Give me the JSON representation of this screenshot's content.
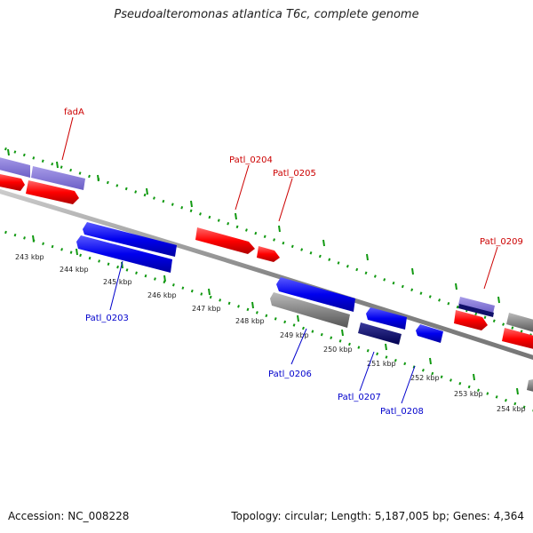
{
  "title": "Pseudoalteromonas atlantica T6c, complete genome",
  "accession": "Accession: NC_008228",
  "summary": "Topology: circular; Length: 5,187,005 bp; Genes: 4,364",
  "colors": {
    "forward_gene": "#ff0000",
    "reverse_gene": "#0000ee",
    "forward_label": "#cc0000",
    "reverse_label": "#0000cc",
    "backbone": "#888888",
    "ticks": "#119911"
  },
  "kbp_ticks": [
    {
      "label": "243 kbp"
    },
    {
      "label": "244 kbp"
    },
    {
      "label": "245 kbp"
    },
    {
      "label": "246 kbp"
    },
    {
      "label": "247 kbp"
    },
    {
      "label": "248 kbp"
    },
    {
      "label": "249 kbp"
    },
    {
      "label": "250 kbp"
    },
    {
      "label": "251 kbp"
    },
    {
      "label": "252 kbp"
    },
    {
      "label": "253 kbp"
    },
    {
      "label": "254 kbp"
    }
  ],
  "gene_labels": {
    "fadA": "fadA",
    "patl_0204": "Patl_0204",
    "patl_0205": "Patl_0205",
    "patl_0209": "Patl_0209",
    "patl_0203": "Patl_0203",
    "patl_0206": "Patl_0206",
    "patl_0207": "Patl_0207",
    "patl_0208": "Patl_0208"
  }
}
